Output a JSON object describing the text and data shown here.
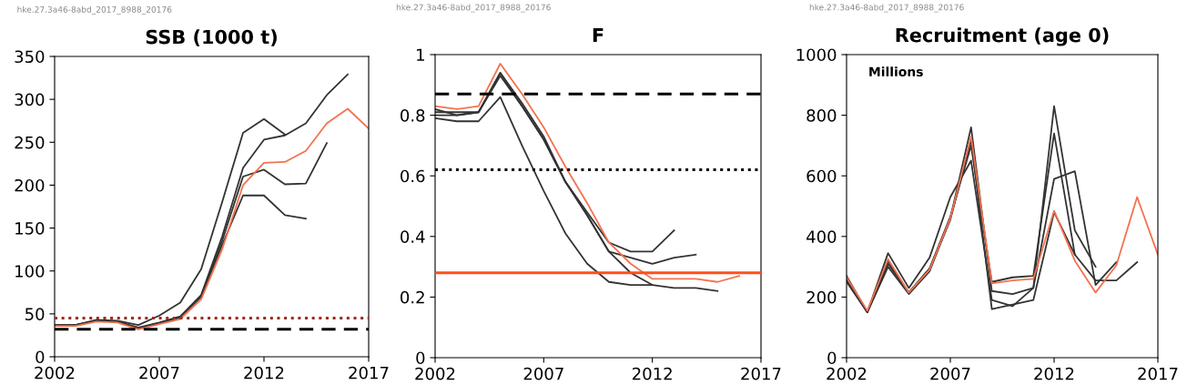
{
  "chart_data": [
    {
      "type": "line",
      "title": "SSB (1000 t)",
      "annotations": [
        "hke.27.3a46-8abd_2017_8988_20176"
      ],
      "x": [
        2002,
        2003,
        2004,
        2005,
        2006,
        2007,
        2008,
        2009,
        2010,
        2011,
        2012,
        2013,
        2014,
        2015,
        2016,
        2017
      ],
      "series": [
        {
          "color": "#333333",
          "values": [
            37,
            37,
            43,
            42,
            37,
            48,
            63,
            102,
            180,
            261,
            277,
            259,
            null,
            null,
            null,
            null
          ]
        },
        {
          "color": "#333333",
          "values": [
            37,
            37,
            42,
            41,
            34,
            40,
            47,
            72,
            140,
            220,
            253,
            258,
            272,
            305,
            329,
            null
          ]
        },
        {
          "color": "#333333",
          "values": [
            37,
            37,
            42,
            41,
            33,
            39,
            46,
            71,
            135,
            210,
            218,
            201,
            202,
            249,
            null,
            null
          ]
        },
        {
          "color": "#333333",
          "values": [
            37,
            37,
            42,
            41,
            33,
            39,
            46,
            70,
            130,
            188,
            188,
            165,
            161,
            null,
            null,
            null
          ]
        },
        {
          "color": "#f4724f",
          "values": [
            36,
            36,
            41,
            40,
            32,
            38,
            44,
            67,
            125,
            200,
            226,
            227,
            240,
            272,
            289,
            266
          ]
        }
      ],
      "ref_lines": [
        {
          "axis": "y",
          "value": 45,
          "color": "#9b2d1f",
          "line_style": "dotted"
        },
        {
          "axis": "y",
          "value": 32,
          "color": "#000000",
          "line_style": "dashed"
        }
      ],
      "xlim": [
        2002,
        2017
      ],
      "xticks": [
        2002,
        2007,
        2012,
        2017
      ],
      "ylim": [
        0,
        350
      ],
      "yticks": [
        0,
        50,
        100,
        150,
        200,
        250,
        300,
        350
      ],
      "grid": false,
      "legend": false
    },
    {
      "type": "line",
      "title": "F",
      "annotations": [
        "hke.27.3a46-8abd_2017_8988_20176"
      ],
      "x": [
        2002,
        2003,
        2004,
        2005,
        2006,
        2007,
        2008,
        2009,
        2010,
        2011,
        2012,
        2013,
        2014,
        2015,
        2016
      ],
      "series": [
        {
          "color": "#333333",
          "values": [
            0.79,
            0.78,
            0.78,
            0.86,
            0.7,
            0.55,
            0.41,
            0.31,
            0.25,
            0.24,
            0.24,
            0.23,
            0.23,
            0.22,
            null
          ]
        },
        {
          "color": "#333333",
          "values": [
            0.8,
            0.8,
            0.81,
            0.94,
            0.83,
            0.72,
            0.58,
            0.47,
            0.35,
            0.33,
            0.31,
            0.33,
            0.34,
            null,
            null
          ]
        },
        {
          "color": "#333333",
          "values": [
            0.81,
            0.81,
            0.81,
            0.94,
            0.84,
            0.73,
            0.58,
            0.48,
            0.38,
            0.35,
            0.35,
            0.42,
            null,
            null,
            null
          ]
        },
        {
          "color": "#333333",
          "values": [
            0.82,
            0.8,
            0.81,
            0.93,
            0.83,
            0.72,
            0.58,
            0.47,
            0.35,
            0.28,
            0.24,
            null,
            null,
            null,
            null
          ]
        },
        {
          "color": "#f4724f",
          "values": [
            0.83,
            0.82,
            0.83,
            0.97,
            0.87,
            0.76,
            0.63,
            0.51,
            0.38,
            0.31,
            0.26,
            0.26,
            0.26,
            0.25,
            0.27
          ]
        }
      ],
      "ref_lines": [
        {
          "axis": "y",
          "value": 0.87,
          "color": "#000000",
          "line_style": "dashed"
        },
        {
          "axis": "y",
          "value": 0.62,
          "color": "#000000",
          "line_style": "dotted"
        },
        {
          "axis": "y",
          "value": 0.28,
          "color": "#ff4f1a",
          "line_style": "solid"
        }
      ],
      "xlim": [
        2002,
        2017
      ],
      "xticks": [
        2002,
        2007,
        2012,
        2017
      ],
      "ylim": [
        0,
        1
      ],
      "yticks": [
        0,
        0.2,
        0.4,
        0.6,
        0.8,
        1
      ],
      "grid": false,
      "legend": false
    },
    {
      "type": "line",
      "title": "Recruitment (age 0)",
      "annotations": [
        "hke.27.3a46-8abd_2017_8988_20176",
        "Millions"
      ],
      "x": [
        2002,
        2003,
        2004,
        2005,
        2006,
        2007,
        2008,
        2009,
        2010,
        2011,
        2012,
        2013,
        2014,
        2015,
        2016,
        2017
      ],
      "series": [
        {
          "color": "#333333",
          "values": [
            260,
            150,
            310,
            215,
            295,
            465,
            700,
            250,
            265,
            270,
            740,
            340,
            255,
            255,
            315,
            null
          ]
        },
        {
          "color": "#333333",
          "values": [
            270,
            150,
            345,
            230,
            330,
            530,
            650,
            190,
            170,
            230,
            590,
            615,
            240,
            315,
            null,
            null
          ]
        },
        {
          "color": "#333333",
          "values": [
            255,
            150,
            300,
            210,
            285,
            460,
            760,
            220,
            210,
            230,
            830,
            420,
            300,
            null,
            null,
            null
          ]
        },
        {
          "color": "#333333",
          "values": [
            250,
            150,
            320,
            215,
            290,
            455,
            720,
            160,
            175,
            190,
            480,
            340,
            null,
            null,
            null,
            null
          ]
        },
        {
          "color": "#f4724f",
          "values": [
            265,
            155,
            325,
            215,
            290,
            460,
            730,
            245,
            255,
            260,
            485,
            320,
            215,
            305,
            530,
            340
          ]
        }
      ],
      "xlim": [
        2002,
        2017
      ],
      "xticks": [
        2002,
        2007,
        2012,
        2017
      ],
      "ylim": [
        0,
        1000
      ],
      "yticks": [
        0,
        200,
        400,
        600,
        800,
        1000
      ],
      "grid": false,
      "legend": false
    }
  ]
}
